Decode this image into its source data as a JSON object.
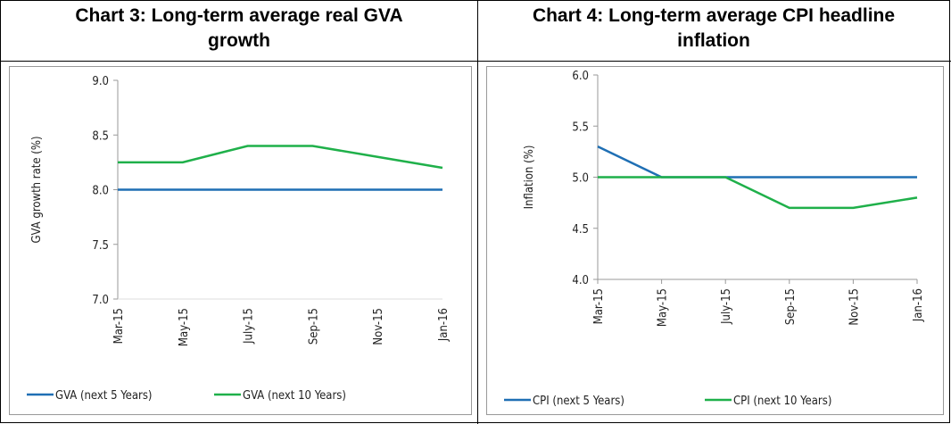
{
  "chart_data": [
    {
      "type": "line",
      "title": "Chart 3: Long-term average real GVA growth",
      "y_label": "GVA  growth rate (%)",
      "categories": [
        "Mar-15",
        "May-15",
        "July-15",
        "Sep-15",
        "Nov-15",
        "Jan-16"
      ],
      "series": [
        {
          "name": "GVA (next 5 Years)",
          "color": "#1f6fb4",
          "values": [
            8.0,
            8.0,
            8.0,
            8.0,
            8.0,
            8.0
          ]
        },
        {
          "name": "GVA (next 10 Years)",
          "color": "#1fb04a",
          "values": [
            8.25,
            8.25,
            8.4,
            8.4,
            8.3,
            8.2
          ]
        }
      ],
      "ylim": [
        7,
        9
      ],
      "yticks": [
        {
          "value": 7,
          "label": "7.0"
        },
        7.5,
        {
          "value": 8,
          "label": "8.0"
        },
        8.5,
        {
          "value": 9,
          "label": "9.0"
        }
      ],
      "legend": "bottom"
    },
    {
      "type": "line",
      "title": "Chart 4: Long-term average CPI headline inflation",
      "y_label": "Inflation (%)",
      "categories": [
        "Mar-15",
        "May-15",
        "July-15",
        "Sep-15",
        "Nov-15",
        "Jan-16"
      ],
      "series": [
        {
          "name": "CPI (next 5 Years)",
          "color": "#1f6fb4",
          "values": [
            5.3,
            5.0,
            5.0,
            5.0,
            5.0,
            5.0
          ]
        },
        {
          "name": "CPI (next 10 Years)",
          "color": "#1fb04a",
          "values": [
            5.0,
            5.0,
            5.0,
            4.7,
            4.7,
            4.8
          ]
        }
      ],
      "ylim": [
        4,
        6
      ],
      "yticks": [
        {
          "value": 4,
          "label": "4.0"
        },
        4.5,
        {
          "value": 5,
          "label": "5.0"
        },
        5.5,
        {
          "value": 6,
          "label": "6.0"
        }
      ],
      "legend": "bottom"
    }
  ]
}
